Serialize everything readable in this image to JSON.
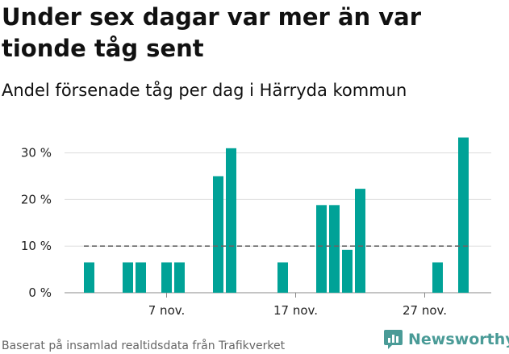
{
  "title": "Under sex dagar var mer än var tionde tåg sent",
  "subtitle": "Andel försenade tåg per dag i Härryda kommun",
  "source": "Baserat på insamlad realtidsdata från Trafikverket",
  "brand": {
    "name": "Newsworthy",
    "icon": "newsworthy-logo-icon",
    "color": "#4a9b97"
  },
  "colors": {
    "bar": "#00a297",
    "grid": "#dddddd",
    "reference_line": "#666666"
  },
  "chart_data": {
    "type": "bar",
    "x": [
      "2022-11-01",
      "2022-11-02",
      "2022-11-03",
      "2022-11-04",
      "2022-11-05",
      "2022-11-06",
      "2022-11-07",
      "2022-11-08",
      "2022-11-09",
      "2022-11-10",
      "2022-11-11",
      "2022-11-12",
      "2022-11-13",
      "2022-11-14",
      "2022-11-15",
      "2022-11-16",
      "2022-11-17",
      "2022-11-18",
      "2022-11-19",
      "2022-11-20",
      "2022-11-21",
      "2022-11-22",
      "2022-11-23",
      "2022-11-24",
      "2022-11-25",
      "2022-11-26",
      "2022-11-27",
      "2022-11-28",
      "2022-11-29",
      "2022-11-30"
    ],
    "values": [
      6.5,
      0,
      0,
      6.5,
      6.5,
      0,
      6.5,
      6.5,
      0,
      0,
      25,
      31,
      0,
      0,
      0,
      6.5,
      0,
      0,
      18.8,
      18.8,
      9.2,
      22.3,
      0,
      0,
      0,
      0,
      0,
      6.5,
      0,
      33.3
    ],
    "unit": "%",
    "ylim": [
      0,
      35
    ],
    "yticks": [
      0,
      10,
      20,
      30
    ],
    "ytick_labels": [
      "0 %",
      "10 %",
      "20 %",
      "30 %"
    ],
    "xticks": [
      "2022-11-07",
      "2022-11-17",
      "2022-11-27"
    ],
    "xtick_labels": [
      "7 nov.",
      "17 nov.",
      "27 nov."
    ],
    "reference_line": 10,
    "grid": true,
    "xlabel": "",
    "ylabel": ""
  }
}
